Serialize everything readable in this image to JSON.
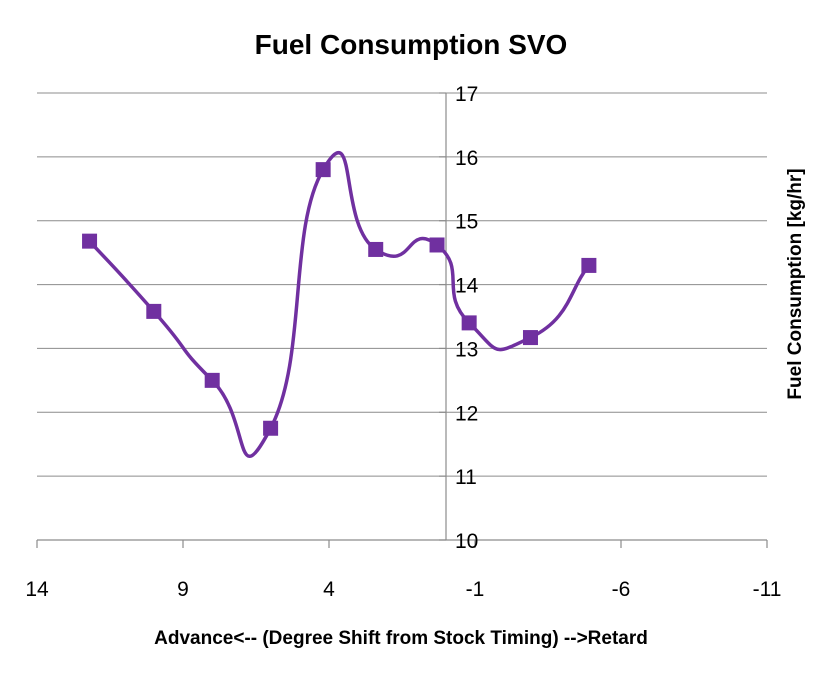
{
  "chart_data": {
    "type": "scatter",
    "title": "Fuel Consumption SVO",
    "xlabel": "Advance<-- (Degree Shift from Stock Timing) -->Retard",
    "ylabel": "Fuel Consumption [kg/hr]",
    "x_reversed": true,
    "xlim": [
      14,
      -11
    ],
    "ylim": [
      10,
      17
    ],
    "xticks": [
      14,
      9,
      4,
      -1,
      -6,
      -11
    ],
    "yticks": [
      10,
      11,
      12,
      13,
      14,
      15,
      16,
      17
    ],
    "grid": true,
    "smooth_line": true,
    "marker": "square",
    "color": "#7030A0",
    "series": [
      {
        "x": [
          12.2,
          10,
          8,
          6,
          4.2,
          2.4,
          0.3,
          -0.8,
          -2.9,
          -4.9
        ],
        "y": [
          14.68,
          13.58,
          12.5,
          11.75,
          15.8,
          14.55,
          14.62,
          13.4,
          13.17,
          14.3
        ]
      }
    ]
  }
}
